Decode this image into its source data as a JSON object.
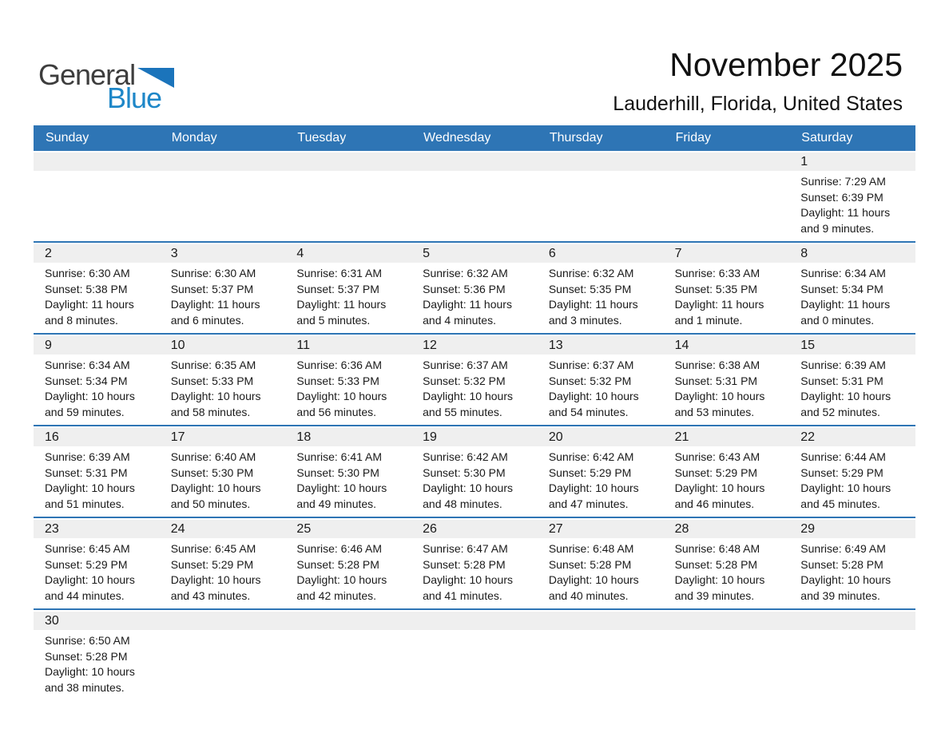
{
  "logo": {
    "text_general": "General",
    "text_blue": "Blue"
  },
  "header": {
    "title": "November 2025",
    "subtitle": "Lauderhill, Florida, United States"
  },
  "weekdays": [
    "Sunday",
    "Monday",
    "Tuesday",
    "Wednesday",
    "Thursday",
    "Friday",
    "Saturday"
  ],
  "colors": {
    "weekday_bg": "#2E75B5",
    "weekday_text": "#FFFFFF",
    "row_separator": "#2E75B5",
    "day_band_bg": "#EFEFEF",
    "text": "#1A1A1A",
    "page_bg": "#FFFFFF",
    "logo_general": "#3D3D3D",
    "logo_blue": "#1E87C8",
    "logo_triangle": "#1B74BB"
  },
  "weeks": [
    [
      null,
      null,
      null,
      null,
      null,
      null,
      {
        "day": "1",
        "sunrise": "Sunrise: 7:29 AM",
        "sunset": "Sunset: 6:39 PM",
        "daylight": "Daylight: 11 hours and 9 minutes."
      }
    ],
    [
      {
        "day": "2",
        "sunrise": "Sunrise: 6:30 AM",
        "sunset": "Sunset: 5:38 PM",
        "daylight": "Daylight: 11 hours and 8 minutes."
      },
      {
        "day": "3",
        "sunrise": "Sunrise: 6:30 AM",
        "sunset": "Sunset: 5:37 PM",
        "daylight": "Daylight: 11 hours and 6 minutes."
      },
      {
        "day": "4",
        "sunrise": "Sunrise: 6:31 AM",
        "sunset": "Sunset: 5:37 PM",
        "daylight": "Daylight: 11 hours and 5 minutes."
      },
      {
        "day": "5",
        "sunrise": "Sunrise: 6:32 AM",
        "sunset": "Sunset: 5:36 PM",
        "daylight": "Daylight: 11 hours and 4 minutes."
      },
      {
        "day": "6",
        "sunrise": "Sunrise: 6:32 AM",
        "sunset": "Sunset: 5:35 PM",
        "daylight": "Daylight: 11 hours and 3 minutes."
      },
      {
        "day": "7",
        "sunrise": "Sunrise: 6:33 AM",
        "sunset": "Sunset: 5:35 PM",
        "daylight": "Daylight: 11 hours and 1 minute."
      },
      {
        "day": "8",
        "sunrise": "Sunrise: 6:34 AM",
        "sunset": "Sunset: 5:34 PM",
        "daylight": "Daylight: 11 hours and 0 minutes."
      }
    ],
    [
      {
        "day": "9",
        "sunrise": "Sunrise: 6:34 AM",
        "sunset": "Sunset: 5:34 PM",
        "daylight": "Daylight: 10 hours and 59 minutes."
      },
      {
        "day": "10",
        "sunrise": "Sunrise: 6:35 AM",
        "sunset": "Sunset: 5:33 PM",
        "daylight": "Daylight: 10 hours and 58 minutes."
      },
      {
        "day": "11",
        "sunrise": "Sunrise: 6:36 AM",
        "sunset": "Sunset: 5:33 PM",
        "daylight": "Daylight: 10 hours and 56 minutes."
      },
      {
        "day": "12",
        "sunrise": "Sunrise: 6:37 AM",
        "sunset": "Sunset: 5:32 PM",
        "daylight": "Daylight: 10 hours and 55 minutes."
      },
      {
        "day": "13",
        "sunrise": "Sunrise: 6:37 AM",
        "sunset": "Sunset: 5:32 PM",
        "daylight": "Daylight: 10 hours and 54 minutes."
      },
      {
        "day": "14",
        "sunrise": "Sunrise: 6:38 AM",
        "sunset": "Sunset: 5:31 PM",
        "daylight": "Daylight: 10 hours and 53 minutes."
      },
      {
        "day": "15",
        "sunrise": "Sunrise: 6:39 AM",
        "sunset": "Sunset: 5:31 PM",
        "daylight": "Daylight: 10 hours and 52 minutes."
      }
    ],
    [
      {
        "day": "16",
        "sunrise": "Sunrise: 6:39 AM",
        "sunset": "Sunset: 5:31 PM",
        "daylight": "Daylight: 10 hours and 51 minutes."
      },
      {
        "day": "17",
        "sunrise": "Sunrise: 6:40 AM",
        "sunset": "Sunset: 5:30 PM",
        "daylight": "Daylight: 10 hours and 50 minutes."
      },
      {
        "day": "18",
        "sunrise": "Sunrise: 6:41 AM",
        "sunset": "Sunset: 5:30 PM",
        "daylight": "Daylight: 10 hours and 49 minutes."
      },
      {
        "day": "19",
        "sunrise": "Sunrise: 6:42 AM",
        "sunset": "Sunset: 5:30 PM",
        "daylight": "Daylight: 10 hours and 48 minutes."
      },
      {
        "day": "20",
        "sunrise": "Sunrise: 6:42 AM",
        "sunset": "Sunset: 5:29 PM",
        "daylight": "Daylight: 10 hours and 47 minutes."
      },
      {
        "day": "21",
        "sunrise": "Sunrise: 6:43 AM",
        "sunset": "Sunset: 5:29 PM",
        "daylight": "Daylight: 10 hours and 46 minutes."
      },
      {
        "day": "22",
        "sunrise": "Sunrise: 6:44 AM",
        "sunset": "Sunset: 5:29 PM",
        "daylight": "Daylight: 10 hours and 45 minutes."
      }
    ],
    [
      {
        "day": "23",
        "sunrise": "Sunrise: 6:45 AM",
        "sunset": "Sunset: 5:29 PM",
        "daylight": "Daylight: 10 hours and 44 minutes."
      },
      {
        "day": "24",
        "sunrise": "Sunrise: 6:45 AM",
        "sunset": "Sunset: 5:29 PM",
        "daylight": "Daylight: 10 hours and 43 minutes."
      },
      {
        "day": "25",
        "sunrise": "Sunrise: 6:46 AM",
        "sunset": "Sunset: 5:28 PM",
        "daylight": "Daylight: 10 hours and 42 minutes."
      },
      {
        "day": "26",
        "sunrise": "Sunrise: 6:47 AM",
        "sunset": "Sunset: 5:28 PM",
        "daylight": "Daylight: 10 hours and 41 minutes."
      },
      {
        "day": "27",
        "sunrise": "Sunrise: 6:48 AM",
        "sunset": "Sunset: 5:28 PM",
        "daylight": "Daylight: 10 hours and 40 minutes."
      },
      {
        "day": "28",
        "sunrise": "Sunrise: 6:48 AM",
        "sunset": "Sunset: 5:28 PM",
        "daylight": "Daylight: 10 hours and 39 minutes."
      },
      {
        "day": "29",
        "sunrise": "Sunrise: 6:49 AM",
        "sunset": "Sunset: 5:28 PM",
        "daylight": "Daylight: 10 hours and 39 minutes."
      }
    ],
    [
      {
        "day": "30",
        "sunrise": "Sunrise: 6:50 AM",
        "sunset": "Sunset: 5:28 PM",
        "daylight": "Daylight: 10 hours and 38 minutes."
      },
      null,
      null,
      null,
      null,
      null,
      null
    ]
  ]
}
